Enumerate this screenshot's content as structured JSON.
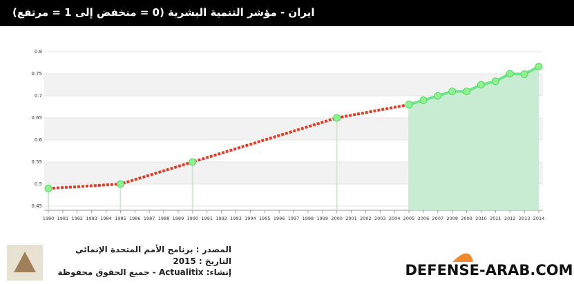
{
  "chart_data": {
    "type": "line",
    "title": "ايران - مؤشر التنمية البشرية (0 = منخفض إلى 1 = مرتفع)",
    "series": [
      {
        "x": [
          1980,
          1985,
          1990,
          2000,
          2005
        ],
        "values": [
          0.49,
          0.5,
          0.55,
          0.65,
          0.68
        ],
        "color": "#e03c28",
        "dashed": true,
        "area": false,
        "marker_color": "#8ef08e"
      },
      {
        "x": [
          2005,
          2006,
          2007,
          2008,
          2009,
          2010,
          2011,
          2012,
          2013,
          2014
        ],
        "values": [
          0.68,
          0.69,
          0.7,
          0.71,
          0.71,
          0.725,
          0.733,
          0.75,
          0.749,
          0.766
        ],
        "color": "#6ee58a",
        "dashed": false,
        "area": true,
        "area_color": "#c8ecd1",
        "marker_color": "#8ef08e"
      }
    ],
    "xlim": [
      1980,
      2014
    ],
    "xticks": [
      1980,
      1981,
      1982,
      1983,
      1984,
      1985,
      1986,
      1987,
      1988,
      1989,
      1990,
      1991,
      1992,
      1993,
      1994,
      1995,
      1996,
      1997,
      1998,
      1999,
      2000,
      2001,
      2002,
      2003,
      2004,
      2005,
      2006,
      2007,
      2008,
      2009,
      2010,
      2011,
      2012,
      2013,
      2014
    ],
    "ylim": [
      0.45,
      0.8
    ],
    "yticks": [
      0.45,
      0.5,
      0.55,
      0.6,
      0.65,
      0.7,
      0.75,
      0.8
    ],
    "grid": true
  },
  "footer": {
    "source": "المصدر : برنامج الأمم المتحدة الإنمائي",
    "date": "التاريخ : 2015",
    "credit": "إنشاء: Actualitix - جميع الحقوق محفوظة",
    "site": "DEFENSE-ARAB.COM"
  }
}
